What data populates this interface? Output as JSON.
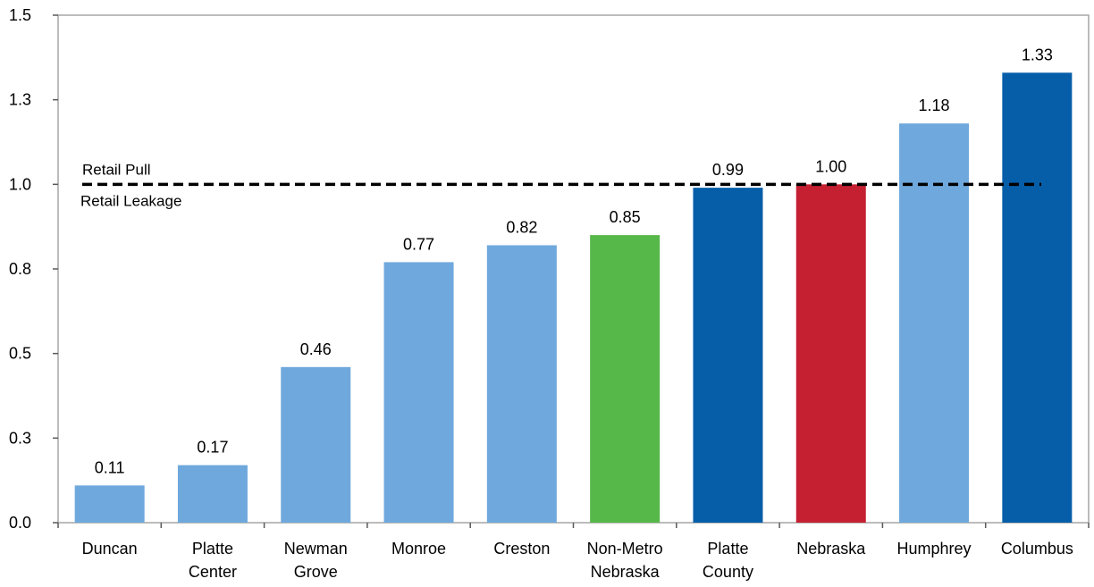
{
  "chart_data": {
    "type": "bar",
    "title": "",
    "xlabel": "",
    "ylabel": "",
    "ylim": [
      0,
      1.5
    ],
    "yticks": [
      0.0,
      0.25,
      0.5,
      0.75,
      1.0,
      1.25,
      1.5
    ],
    "ytick_labels": [
      "0.0",
      "0.3",
      "0.5",
      "0.8",
      "1.0",
      "1.3",
      "1.5"
    ],
    "grid": false,
    "categories": [
      [
        "Duncan"
      ],
      [
        "Platte",
        "Center"
      ],
      [
        "Newman",
        "Grove"
      ],
      [
        "Monroe"
      ],
      [
        "Creston"
      ],
      [
        "Non-Metro",
        "Nebraska"
      ],
      [
        "Platte",
        "County"
      ],
      [
        "Nebraska"
      ],
      [
        "Humphrey"
      ],
      [
        "Columbus"
      ]
    ],
    "values": [
      0.11,
      0.17,
      0.46,
      0.77,
      0.82,
      0.85,
      0.99,
      1.0,
      1.18,
      1.33
    ],
    "data_labels": [
      "0.11",
      "0.17",
      "0.46",
      "0.77",
      "0.82",
      "0.85",
      "0.99",
      "1.00",
      "1.18",
      "1.33"
    ],
    "bar_colors": [
      "#6FA8DC",
      "#6FA8DC",
      "#6FA8DC",
      "#6FA8DC",
      "#6FA8DC",
      "#57B84A",
      "#065EA9",
      "#C42032",
      "#6FA8DC",
      "#065EA9"
    ],
    "reference_line": {
      "value": 1.0,
      "style": "dashed",
      "color": "#000000"
    },
    "annotations": {
      "above_line": "Retail Pull",
      "below_line": "Retail Leakage"
    }
  }
}
